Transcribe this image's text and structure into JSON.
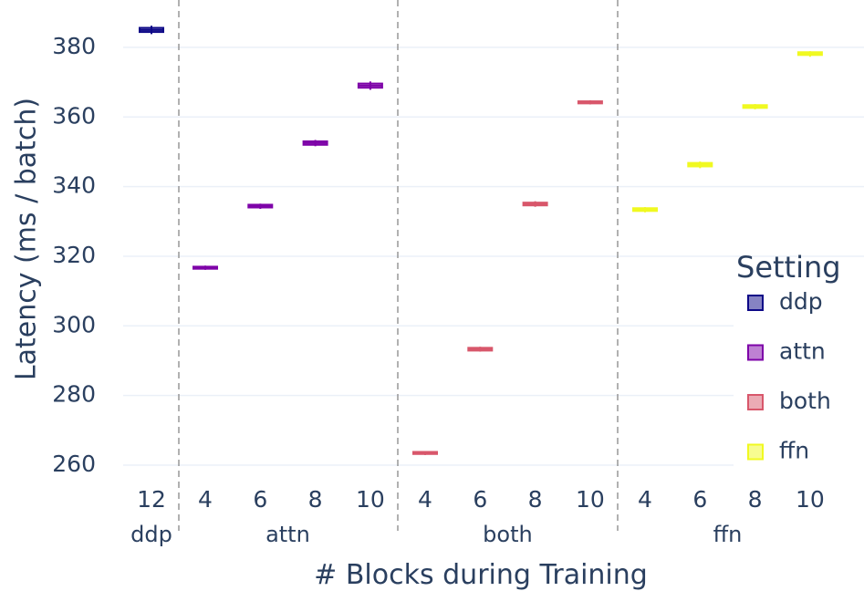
{
  "chart_data": {
    "type": "box",
    "xlabel": "# Blocks during Training",
    "ylabel": "Latency (ms / batch)",
    "ylim": [
      255,
      392
    ],
    "yticks": [
      260,
      280,
      300,
      320,
      340,
      360,
      380
    ],
    "grid": true,
    "legend": {
      "title": "Setting",
      "placement": "right",
      "items": [
        "ddp",
        "attn",
        "both",
        "ffn"
      ]
    },
    "groups": [
      {
        "name": "ddp",
        "ticks": [
          "12"
        ]
      },
      {
        "name": "attn",
        "ticks": [
          "4",
          "6",
          "8",
          "10"
        ]
      },
      {
        "name": "both",
        "ticks": [
          "4",
          "6",
          "8",
          "10"
        ]
      },
      {
        "name": "ffn",
        "ticks": [
          "4",
          "6",
          "8",
          "10"
        ]
      }
    ],
    "series": [
      {
        "name": "ddp",
        "color": "#0d0887",
        "points": [
          {
            "group": "ddp",
            "blocks": "12",
            "median": 385.0,
            "q1": 384.4,
            "q3": 385.6,
            "min": 383.8,
            "max": 386.2
          }
        ]
      },
      {
        "name": "attn",
        "color": "#7e03a8",
        "points": [
          {
            "group": "attn",
            "blocks": "4",
            "median": 316.7,
            "q1": 316.4,
            "q3": 317.0,
            "min": 316.1,
            "max": 317.3
          },
          {
            "group": "attn",
            "blocks": "6",
            "median": 334.4,
            "q1": 334.0,
            "q3": 334.8,
            "min": 333.6,
            "max": 335.1
          },
          {
            "group": "attn",
            "blocks": "8",
            "median": 352.5,
            "q1": 352.0,
            "q3": 353.0,
            "min": 351.6,
            "max": 353.4
          },
          {
            "group": "attn",
            "blocks": "10",
            "median": 369.0,
            "q1": 368.4,
            "q3": 369.6,
            "min": 367.8,
            "max": 370.2
          }
        ]
      },
      {
        "name": "both",
        "color": "#d8576b",
        "points": [
          {
            "group": "both",
            "blocks": "4",
            "median": 263.5,
            "q1": 263.2,
            "q3": 263.8,
            "min": 262.9,
            "max": 264.0
          },
          {
            "group": "both",
            "blocks": "6",
            "median": 293.3,
            "q1": 292.9,
            "q3": 293.7,
            "min": 292.6,
            "max": 294.0
          },
          {
            "group": "both",
            "blocks": "8",
            "median": 335.0,
            "q1": 334.6,
            "q3": 335.4,
            "min": 334.2,
            "max": 335.8
          },
          {
            "group": "both",
            "blocks": "10",
            "median": 364.2,
            "q1": 363.9,
            "q3": 364.5,
            "min": 363.6,
            "max": 364.8
          }
        ]
      },
      {
        "name": "ffn",
        "color": "#f0f921",
        "points": [
          {
            "group": "ffn",
            "blocks": "4",
            "median": 333.4,
            "q1": 333.0,
            "q3": 333.8,
            "min": 332.6,
            "max": 334.1
          },
          {
            "group": "ffn",
            "blocks": "6",
            "median": 346.3,
            "q1": 345.8,
            "q3": 346.8,
            "min": 345.3,
            "max": 347.2
          },
          {
            "group": "ffn",
            "blocks": "8",
            "median": 363.0,
            "q1": 362.6,
            "q3": 363.4,
            "min": 362.2,
            "max": 363.7
          },
          {
            "group": "ffn",
            "blocks": "10",
            "median": 378.2,
            "q1": 377.8,
            "q3": 378.6,
            "min": 377.3,
            "max": 378.9
          }
        ]
      }
    ]
  }
}
